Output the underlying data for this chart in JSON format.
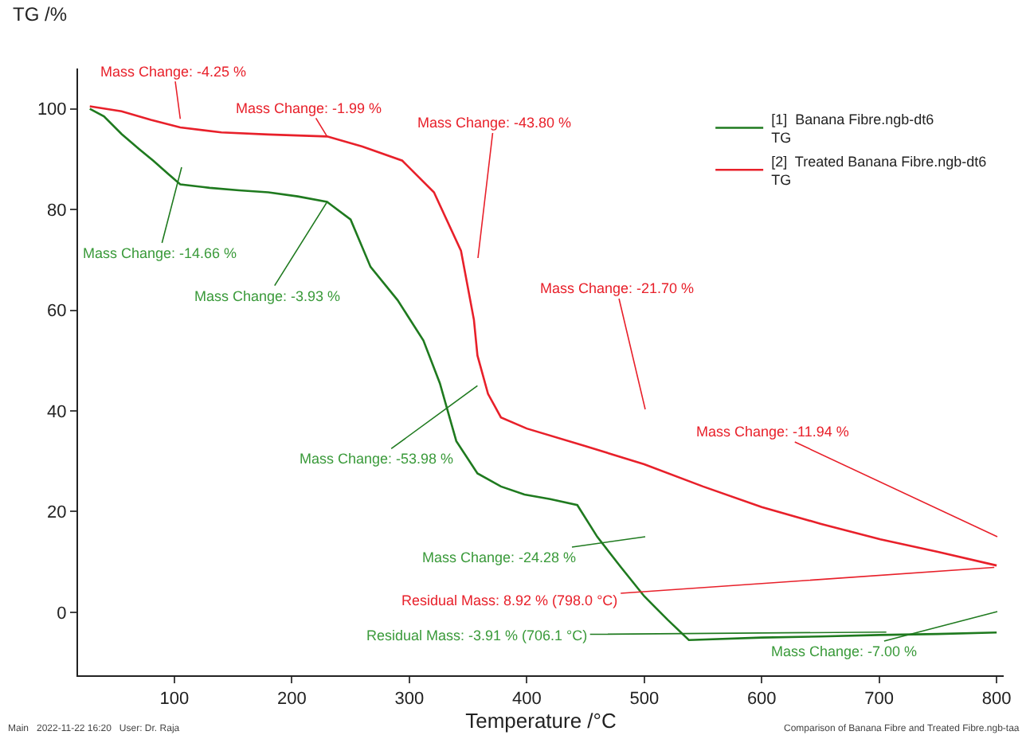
{
  "chart_data": {
    "type": "line",
    "xlabel": "Temperature /°C",
    "ylabel": "TG /%",
    "xlim": [
      18,
      806
    ],
    "ylim": [
      -12.5,
      108
    ],
    "xticks": [
      100,
      200,
      300,
      400,
      500,
      600,
      700,
      800
    ],
    "yticks": [
      0,
      20,
      40,
      60,
      80,
      100
    ],
    "grid": false,
    "legend": "top right",
    "marker": "none",
    "line_style": "solid",
    "series": [
      {
        "name": "[1]  Banana Fibre.ngb-dt6\nTG",
        "color": "#1f7a1f",
        "x": [
          28,
          40,
          55,
          70,
          82,
          95,
          105,
          130,
          155,
          180,
          205,
          230,
          250,
          267,
          290,
          312,
          326,
          340,
          358,
          378,
          398,
          420,
          443,
          460,
          480,
          500,
          520,
          538,
          600,
          650,
          700,
          750,
          800
        ],
        "values": [
          100,
          98.5,
          95,
          92,
          89.7,
          87,
          85,
          84.3,
          83.8,
          83.4,
          82.6,
          81.5,
          78,
          68.6,
          62,
          54,
          45.5,
          34,
          27.6,
          25,
          23.4,
          22.5,
          21.3,
          15,
          9,
          3.2,
          -1.5,
          -5.5,
          -5,
          -4.8,
          -4.5,
          -4.3,
          -4
        ]
      },
      {
        "name": "[2]  Treated Banana Fibre.ngb-dt6\nTG",
        "color": "#e8202a",
        "x": [
          28,
          55,
          80,
          105,
          140,
          180,
          230,
          260,
          294,
          321,
          344,
          355,
          358,
          367,
          378,
          400,
          450,
          500,
          550,
          600,
          650,
          701,
          750,
          800
        ],
        "values": [
          100.5,
          99.5,
          97.8,
          96.3,
          95.3,
          94.9,
          94.5,
          92.5,
          89.7,
          83.4,
          71.8,
          58.1,
          51,
          43.4,
          38.7,
          36.5,
          33,
          29.4,
          25,
          20.9,
          17.6,
          14.5,
          12,
          9.3
        ]
      }
    ],
    "annotations": [
      {
        "text": "Mass Change: -4.25 %",
        "x": 105,
        "y": 98
      },
      {
        "text": "Mass Change: -1.99 %",
        "x": 230,
        "y": 94.5
      },
      "Mass Change: -43.80 %",
      "Mass Change: -21.70 %",
      "Mass Change: -11.94 %",
      {
        "text": "Residual Mass: 8.92 % (798.0 °C)",
        "x": 798,
        "y": 8.92
      },
      "Mass Change: -14.66 %",
      {
        "text": "Mass Change: -3.93 %",
        "x": 230,
        "y": 81.5
      },
      {
        "text": "Mass Change: -53.98 %",
        "x": 358,
        "y": 45
      },
      "Mass Change: -24.28 %",
      {
        "text": "Residual Mass: -3.91 % (706.1 °C)",
        "x": 706.1,
        "y": -3.91
      },
      "Mass Change: -7.00 %",
      "Main   2022-11-22 16:20   User: Dr. Raja",
      "Comparison of Banana Fibre and Treated Fibre.ngb-taa"
    ]
  }
}
